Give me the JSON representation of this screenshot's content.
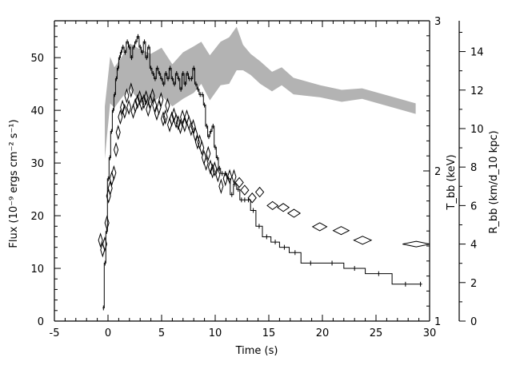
{
  "chart_data": {
    "type": "line",
    "xlabel": "Time (s)",
    "ylabel_left": "Flux (10⁻⁹ ergs cm⁻² s⁻¹)",
    "ylabel_right_temp": "T_bb (keV)",
    "ylabel_right_radius": "R_bb (km/d_10 kpc)",
    "xlim": [
      -5,
      30
    ],
    "ylim_left": [
      0,
      57
    ],
    "ylim_right_temp": [
      1,
      3
    ],
    "ylim_right_radius": [
      0,
      15.6
    ],
    "x_ticks": [
      -5,
      0,
      5,
      10,
      15,
      20,
      25,
      30
    ],
    "y_ticks_left": [
      0,
      10,
      20,
      30,
      40,
      50
    ],
    "y_ticks_temp": [
      1,
      2,
      3
    ],
    "y_ticks_radius": [
      0,
      2,
      4,
      6,
      8,
      10,
      12,
      14
    ],
    "grid": false,
    "series": [
      {
        "kind": "flux_step_histogram",
        "x": [
          -0.5,
          -0.35,
          -0.2,
          -0.05,
          0.1,
          0.25,
          0.4,
          0.55,
          0.7,
          0.85,
          1.0,
          1.15,
          1.3,
          1.5,
          1.7,
          1.9,
          2.1,
          2.3,
          2.5,
          2.7,
          2.9,
          3.1,
          3.3,
          3.5,
          3.7,
          3.9,
          4.1,
          4.3,
          4.5,
          4.7,
          4.9,
          5.1,
          5.3,
          5.5,
          5.7,
          5.9,
          6.1,
          6.3,
          6.5,
          6.7,
          6.9,
          7.1,
          7.3,
          7.5,
          7.7,
          7.9,
          8.1,
          8.3,
          8.5,
          8.7,
          8.9,
          9.1,
          9.3,
          9.5,
          9.7,
          9.9,
          10.1,
          10.3,
          10.5,
          10.8,
          11.1,
          11.4,
          11.7,
          12.0,
          12.3,
          12.6,
          12.9,
          13.3,
          13.8,
          14.4,
          15.2,
          16.0,
          16.9,
          18.0,
          19.8,
          22.0,
          24.0,
          26.5,
          29.0
        ],
        "y": [
          2.5,
          11,
          17,
          27,
          31,
          36,
          40,
          43,
          46,
          48,
          50,
          51,
          52,
          51,
          53,
          52,
          50,
          52,
          53,
          54,
          52,
          51,
          53,
          50,
          52,
          48,
          47,
          46,
          48,
          47,
          46,
          45,
          47,
          46,
          48,
          46,
          45,
          47,
          46,
          44,
          47,
          45,
          47,
          46,
          46,
          48,
          45,
          44,
          43,
          43,
          41,
          37,
          35,
          36,
          37,
          33,
          31,
          29,
          28,
          28,
          27,
          24,
          26,
          25,
          23,
          23,
          23,
          21,
          18,
          16,
          15,
          14,
          13,
          11,
          11,
          10,
          9,
          7,
          7
        ]
      },
      {
        "kind": "radius_diamonds",
        "x": [
          -0.7,
          -0.5,
          -0.3,
          -0.1,
          0.05,
          0.2,
          0.35,
          0.55,
          0.75,
          0.95,
          1.15,
          1.35,
          1.55,
          1.75,
          1.95,
          2.15,
          2.35,
          2.55,
          2.75,
          2.95,
          3.15,
          3.35,
          3.55,
          3.75,
          3.95,
          4.15,
          4.35,
          4.55,
          4.75,
          4.95,
          5.15,
          5.35,
          5.55,
          5.75,
          5.95,
          6.15,
          6.35,
          6.55,
          6.75,
          6.95,
          7.15,
          7.35,
          7.55,
          7.75,
          7.95,
          8.15,
          8.35,
          8.55,
          8.75,
          8.95,
          9.15,
          9.35,
          9.55,
          9.75,
          9.95,
          10.25,
          10.55,
          10.95,
          11.35,
          11.75,
          12.25,
          12.75,
          13.45,
          14.15,
          15.35,
          16.35,
          17.35,
          19.75,
          21.75,
          23.75,
          28.75
        ],
        "y": [
          4.2,
          3.7,
          4.0,
          5.1,
          6.5,
          6.9,
          7.4,
          7.7,
          8.9,
          9.8,
          10.6,
          11.1,
          10.9,
          11.7,
          11.1,
          12.0,
          10.9,
          11.2,
          11.4,
          11.6,
          11.3,
          11.4,
          11.6,
          11.0,
          11.4,
          11.7,
          11.2,
          10.8,
          11.1,
          11.5,
          10.5,
          10.6,
          11.2,
          10.2,
          10.5,
          10.7,
          10.4,
          10.3,
          10.1,
          10.6,
          10.2,
          10.6,
          10.3,
          10.0,
          10.1,
          9.7,
          9.3,
          9.3,
          9.0,
          8.5,
          8.2,
          8.7,
          8.0,
          7.8,
          7.9,
          7.6,
          7.0,
          7.4,
          7.5,
          7.5,
          7.2,
          6.8,
          6.4,
          6.7,
          6.0,
          5.9,
          5.6,
          4.9,
          4.7,
          4.2,
          4.0
        ]
      },
      {
        "kind": "temperature_band",
        "x": [
          -0.3,
          0.2,
          0.6,
          1.2,
          2.0,
          3.0,
          4.0,
          5.0,
          6.0,
          7.0,
          8.0,
          8.7,
          9.5,
          10.5,
          11.3,
          12.0,
          12.6,
          13.3,
          14.2,
          15.3,
          16.2,
          17.3,
          19.8,
          21.8,
          23.7,
          28.7
        ],
        "lo": [
          2.08,
          2.45,
          2.42,
          2.48,
          2.55,
          2.46,
          2.45,
          2.5,
          2.43,
          2.48,
          2.52,
          2.58,
          2.47,
          2.57,
          2.58,
          2.67,
          2.67,
          2.64,
          2.58,
          2.53,
          2.57,
          2.51,
          2.49,
          2.46,
          2.48,
          2.38
        ],
        "hi": [
          2.43,
          2.76,
          2.69,
          2.75,
          2.85,
          2.81,
          2.78,
          2.82,
          2.71,
          2.79,
          2.83,
          2.86,
          2.77,
          2.86,
          2.89,
          2.96,
          2.84,
          2.78,
          2.73,
          2.66,
          2.69,
          2.62,
          2.57,
          2.54,
          2.55,
          2.45
        ]
      }
    ]
  }
}
